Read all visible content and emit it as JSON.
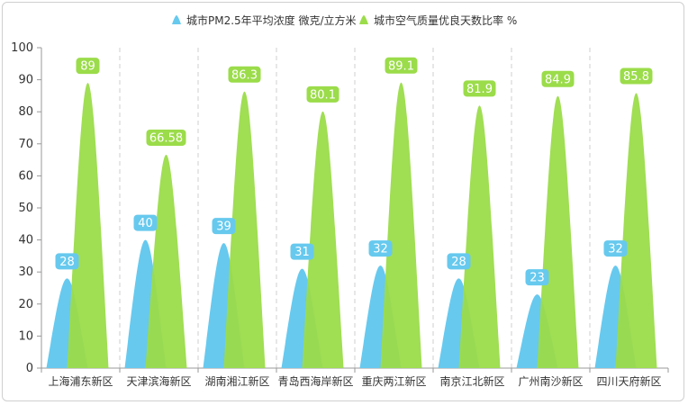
{
  "chart_data": {
    "type": "bar",
    "categories": [
      "上海浦东新区",
      "天津滨海新区",
      "湖南湘江新区",
      "青岛西海岸新区",
      "重庆两江新区",
      "南京江北新区",
      "广州南沙新区",
      "四川天府新区"
    ],
    "series": [
      {
        "name": "城市PM2.5年平均浓度 微克/立方米",
        "values": [
          28,
          40,
          39,
          31,
          32,
          28,
          23,
          32
        ],
        "labels": [
          "28",
          "40",
          "39",
          "31",
          "32",
          "28",
          "23",
          "32"
        ],
        "color": "#67c9ee"
      },
      {
        "name": "城市空气质量优良天数比率 %",
        "values": [
          89,
          66.58,
          86.3,
          80.1,
          89.1,
          81.9,
          84.9,
          85.8
        ],
        "labels": [
          "89",
          "66.58",
          "86.3",
          "80.1",
          "89.1",
          "81.9",
          "84.9",
          "85.8"
        ],
        "color": "#9bdc4a"
      }
    ],
    "yticks": [
      "0",
      "10",
      "20",
      "30",
      "40",
      "50",
      "60",
      "70",
      "80",
      "90",
      "100"
    ],
    "ylim": [
      0,
      100
    ],
    "legend": "top-center",
    "grid": "vertical-dashed-between-categories"
  }
}
